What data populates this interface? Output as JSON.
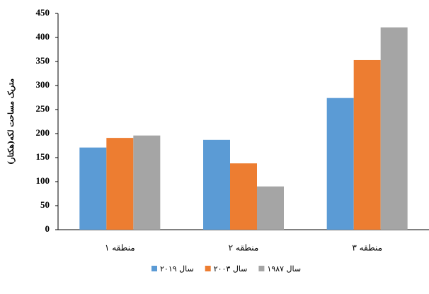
{
  "chart_data": {
    "type": "bar",
    "y_label": "متریک مساحت لکه(هکتار)",
    "categories": [
      "منطقه ۱",
      "منطقه ۲",
      "منطقه ۳"
    ],
    "series": [
      {
        "name": "سال ۲۰۱۹",
        "color": "#5b9bd5",
        "values": [
          171,
          187,
          274
        ]
      },
      {
        "name": "سال ۲۰۰۳",
        "color": "#ed7d31",
        "values": [
          191,
          138,
          353
        ]
      },
      {
        "name": "سال ۱۹۸۷",
        "color": "#a5a5a5",
        "values": [
          196,
          90,
          421
        ]
      }
    ],
    "ylim": [
      0,
      450
    ],
    "yticks": [
      0,
      50,
      100,
      150,
      200,
      250,
      300,
      350,
      400,
      450
    ],
    "grid": false
  }
}
